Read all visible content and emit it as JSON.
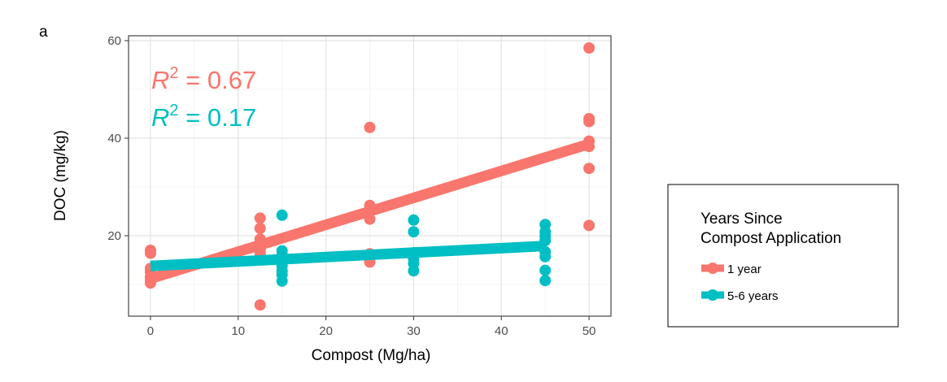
{
  "panel_label": "a",
  "chart_data": {
    "type": "scatter",
    "xlabel": "Compost (Mg/ha)",
    "ylabel": "DOC (mg/kg)",
    "xlim": [
      -2.5,
      52.5
    ],
    "ylim": [
      3.5,
      61
    ],
    "x_ticks": [
      0,
      10,
      20,
      30,
      40,
      50
    ],
    "y_ticks": [
      20,
      40,
      60
    ],
    "grid": true,
    "legend_position": "right",
    "legend": {
      "title_line1": "Years Since",
      "title_line2": "Compost Application"
    },
    "series": [
      {
        "name": "1 year",
        "color": "#F8766D",
        "points": [
          {
            "x": 0,
            "y": 17.0
          },
          {
            "x": 0,
            "y": 16.4
          },
          {
            "x": 0,
            "y": 13.3
          },
          {
            "x": 0,
            "y": 12.6
          },
          {
            "x": 0,
            "y": 11.5
          },
          {
            "x": 0,
            "y": 10.8
          },
          {
            "x": 0,
            "y": 10.3
          },
          {
            "x": 12.5,
            "y": 23.6
          },
          {
            "x": 12.5,
            "y": 21.5
          },
          {
            "x": 12.5,
            "y": 19.3
          },
          {
            "x": 12.5,
            "y": 18.0
          },
          {
            "x": 12.5,
            "y": 17.2
          },
          {
            "x": 12.5,
            "y": 16.4
          },
          {
            "x": 12.5,
            "y": 5.8
          },
          {
            "x": 25,
            "y": 42.2
          },
          {
            "x": 25,
            "y": 26.2
          },
          {
            "x": 25,
            "y": 24.9
          },
          {
            "x": 25,
            "y": 23.4
          },
          {
            "x": 25,
            "y": 16.3
          },
          {
            "x": 25,
            "y": 14.6
          },
          {
            "x": 50,
            "y": 58.5
          },
          {
            "x": 50,
            "y": 44.0
          },
          {
            "x": 50,
            "y": 43.4
          },
          {
            "x": 50,
            "y": 39.4
          },
          {
            "x": 50,
            "y": 38.3
          },
          {
            "x": 50,
            "y": 33.8
          },
          {
            "x": 50,
            "y": 22.1
          }
        ],
        "fit": {
          "x": [
            0,
            50
          ],
          "y": [
            11.2,
            38.8
          ]
        },
        "r2_label": "0.67"
      },
      {
        "name": "5-6 years",
        "color": "#00BFC4",
        "points": [
          {
            "x": 15,
            "y": 24.2
          },
          {
            "x": 15,
            "y": 16.9
          },
          {
            "x": 15,
            "y": 16.0
          },
          {
            "x": 15,
            "y": 14.6
          },
          {
            "x": 15,
            "y": 13.8
          },
          {
            "x": 15,
            "y": 12.8
          },
          {
            "x": 15,
            "y": 12.0
          },
          {
            "x": 15,
            "y": 10.7
          },
          {
            "x": 30,
            "y": 23.2
          },
          {
            "x": 30,
            "y": 20.8
          },
          {
            "x": 30,
            "y": 16.5
          },
          {
            "x": 30,
            "y": 15.3
          },
          {
            "x": 30,
            "y": 14.3
          },
          {
            "x": 30,
            "y": 12.8
          },
          {
            "x": 45,
            "y": 22.3
          },
          {
            "x": 45,
            "y": 20.8
          },
          {
            "x": 45,
            "y": 19.9
          },
          {
            "x": 45,
            "y": 19.0
          },
          {
            "x": 45,
            "y": 16.7
          },
          {
            "x": 45,
            "y": 15.7
          },
          {
            "x": 45,
            "y": 12.9
          },
          {
            "x": 45,
            "y": 10.8
          }
        ],
        "fit": {
          "x": [
            0,
            45
          ],
          "y": [
            13.8,
            17.9
          ]
        },
        "r2_label": "0.17"
      }
    ]
  }
}
